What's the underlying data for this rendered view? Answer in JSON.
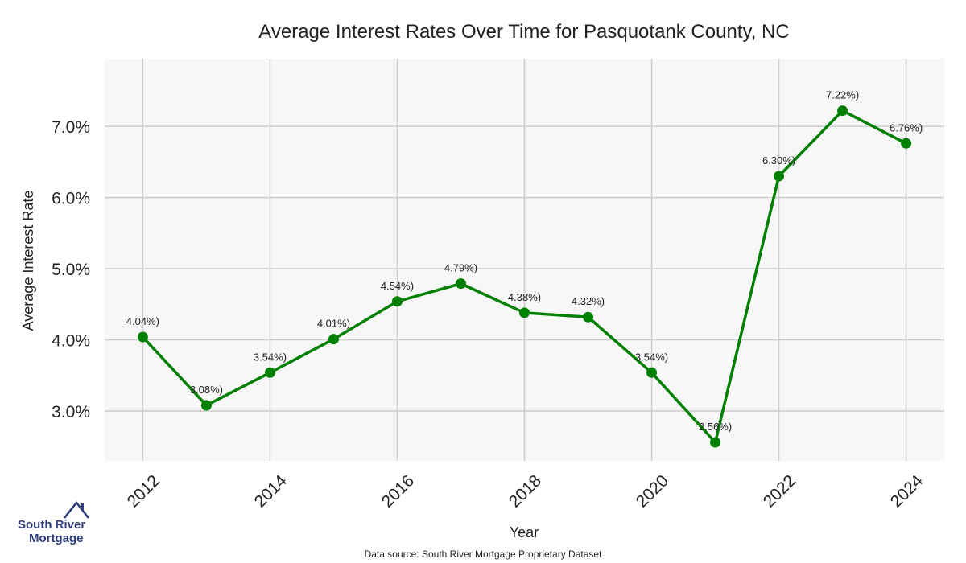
{
  "chart_data": {
    "type": "line",
    "title": "Average Interest Rates Over Time for Pasquotank County, NC",
    "xlabel": "Year",
    "ylabel": "Average Interest Rate",
    "x": [
      2012,
      2013,
      2014,
      2015,
      2016,
      2017,
      2018,
      2019,
      2020,
      2021,
      2022,
      2023,
      2024
    ],
    "values": [
      4.04,
      3.08,
      3.54,
      4.01,
      4.54,
      4.79,
      4.38,
      4.32,
      3.54,
      2.56,
      6.3,
      7.22,
      6.76
    ],
    "data_labels": [
      "4.04%)",
      "3.08%)",
      "3.54%)",
      "4.01%)",
      "4.54%)",
      "4.79%)",
      "4.38%)",
      "4.32%)",
      "3.54%)",
      "2.56%)",
      "6.30%)",
      "7.22%)",
      "6.76%)"
    ],
    "x_ticks": [
      2012,
      2014,
      2016,
      2018,
      2020,
      2022,
      2024
    ],
    "x_tick_labels": [
      "2012",
      "2014",
      "2016",
      "2018",
      "2020",
      "2022",
      "2024"
    ],
    "y_ticks": [
      3.0,
      4.0,
      5.0,
      6.0,
      7.0
    ],
    "y_tick_labels": [
      "3.0%",
      "4.0%",
      "5.0%",
      "6.0%",
      "7.0%"
    ],
    "xlim": [
      2011.4,
      2024.6
    ],
    "ylim": [
      2.3,
      7.95
    ],
    "grid": true,
    "line_color": "#008000",
    "plot_background": "#f7f7f7",
    "grid_color": "#cccccc"
  },
  "footer": {
    "source": "Data source: South River Mortgage Proprietary Dataset"
  },
  "logo": {
    "line1": "South River",
    "line2": "Mortgage",
    "color": "#2e3e7c",
    "icon": "house-icon"
  }
}
